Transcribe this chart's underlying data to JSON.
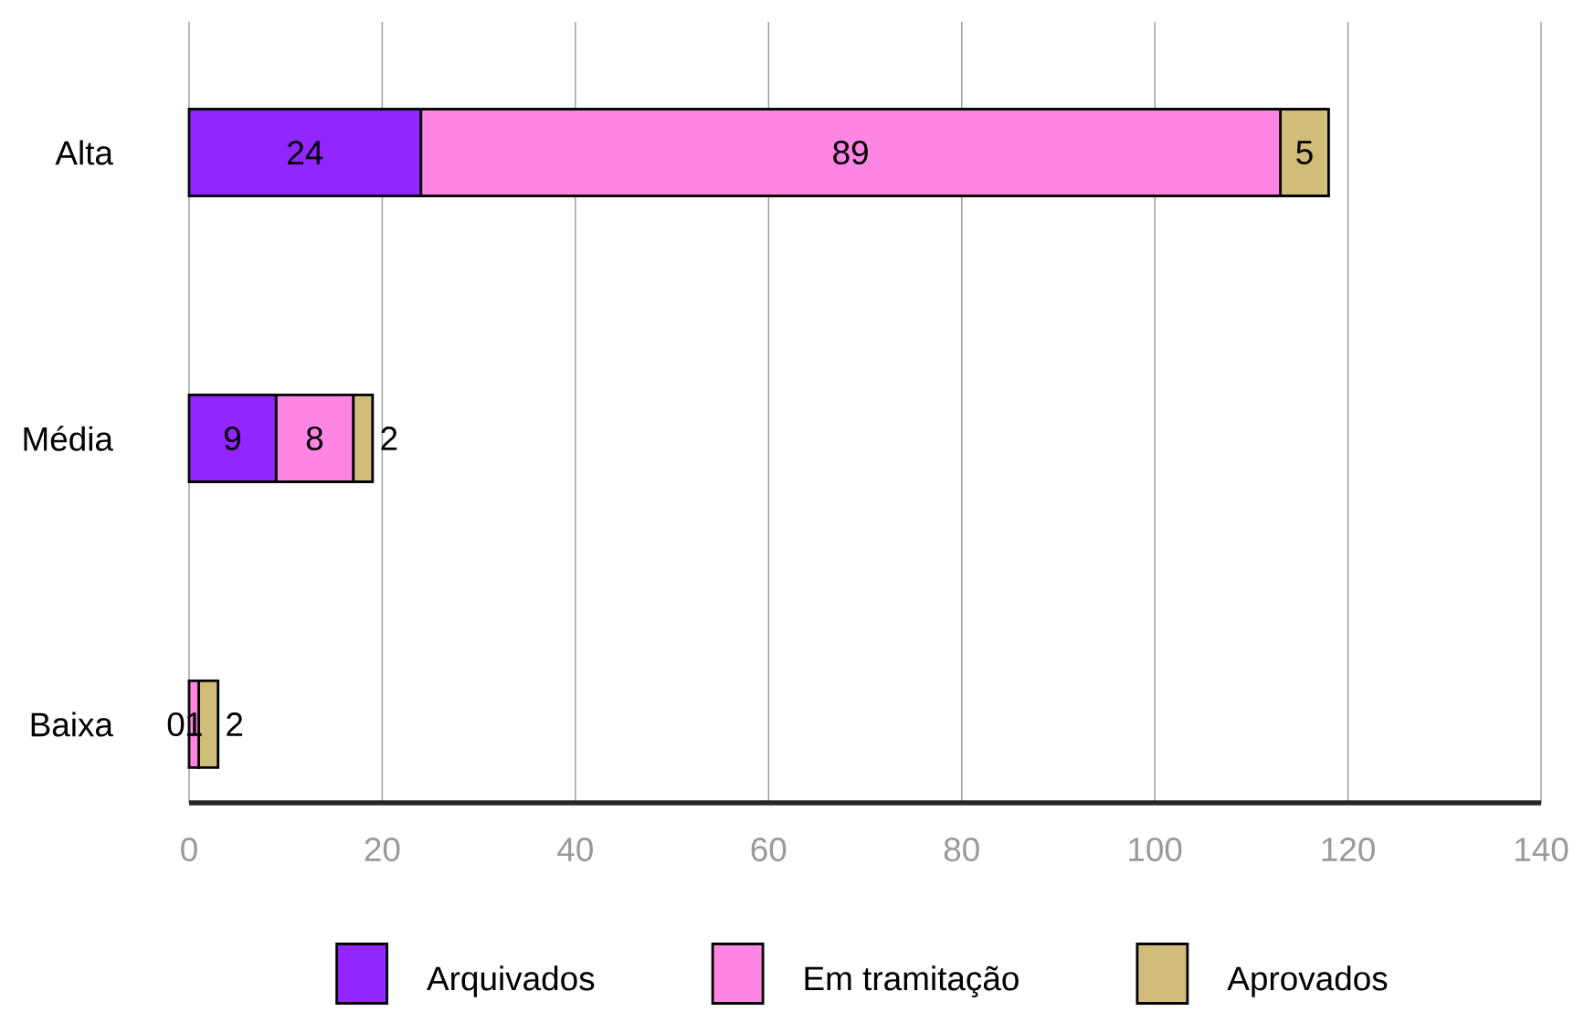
{
  "chart_data": {
    "type": "bar",
    "orientation": "horizontal",
    "stacked": true,
    "categories": [
      "Alta",
      "Média",
      "Baixa"
    ],
    "series": [
      {
        "name": "Arquivados",
        "color": "#9226ff",
        "values": [
          24,
          9,
          0
        ]
      },
      {
        "name": "Em tramitação",
        "color": "#ff85e3",
        "values": [
          89,
          8,
          1
        ]
      },
      {
        "name": "Aprovados",
        "color": "#d1bd7a",
        "values": [
          5,
          2,
          2
        ]
      }
    ],
    "xlim": [
      0,
      140
    ],
    "xticks": [
      0,
      20,
      40,
      60,
      80,
      100,
      120,
      140
    ],
    "grid": "x",
    "legend": "bottom",
    "data_labels": true
  }
}
